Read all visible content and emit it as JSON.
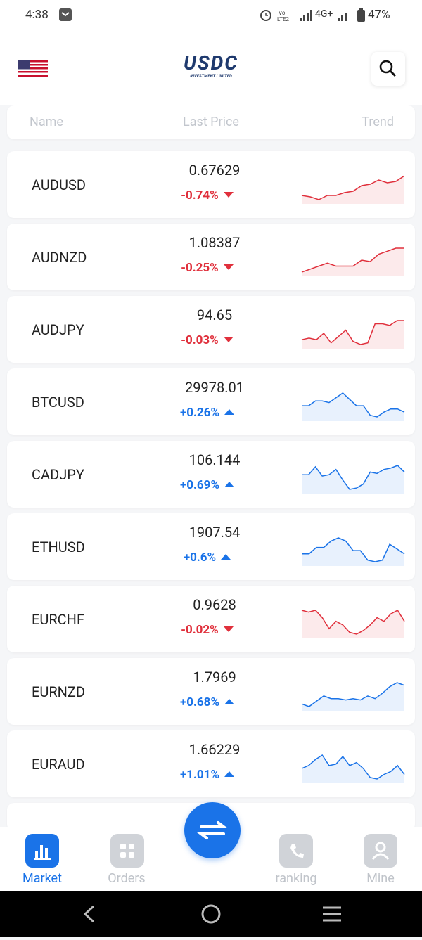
{
  "status_bar": {
    "time": "4:38",
    "network": "4G+",
    "battery": "47%"
  },
  "header": {
    "logo": "USDC",
    "logo_subtitle": "INVESTMENT LIMITED"
  },
  "table": {
    "columns": [
      "Name",
      "Last Price",
      "Trend"
    ],
    "rows": [
      {
        "symbol": "AUDUSD",
        "price": "0.67629",
        "change": "-0.74%",
        "color": "#e0303c",
        "trend": [
          4,
          3.5,
          2.5,
          4,
          4,
          5,
          5.5,
          7.5,
          8,
          9.5,
          8.5,
          9,
          11
        ]
      },
      {
        "symbol": "AUDNZD",
        "price": "1.08387",
        "change": "-0.25%",
        "color": "#e0303c",
        "trend": [
          2,
          3,
          4,
          5,
          4,
          4,
          4,
          6,
          5.5,
          8,
          9,
          10,
          10
        ]
      },
      {
        "symbol": "AUDJPY",
        "price": "94.65",
        "change": "-0.03%",
        "color": "#e0303c",
        "trend": [
          4,
          4.5,
          4,
          6,
          3,
          5,
          7,
          3.5,
          2.5,
          3,
          9,
          9,
          8.5,
          10,
          10
        ]
      },
      {
        "symbol": "BTCUSD",
        "price": "29978.01",
        "change": "+0.26%",
        "color": "#1a73e8",
        "trend": [
          5,
          5,
          6.5,
          6.5,
          6,
          7.5,
          9,
          7,
          5,
          5,
          2,
          1.5,
          3,
          4,
          4,
          3
        ]
      },
      {
        "symbol": "CADJPY",
        "price": "106.144",
        "change": "+0.69%",
        "color": "#1a73e8",
        "trend": [
          6,
          6,
          9,
          5.5,
          6,
          8,
          4,
          0.5,
          1,
          2.5,
          7,
          6.5,
          8,
          8.5,
          9.5,
          7
        ]
      },
      {
        "symbol": "ETHUSD",
        "price": "1907.54",
        "change": "+0.6%",
        "color": "#1a73e8",
        "trend": [
          3,
          3,
          5,
          5,
          7,
          8,
          7,
          4,
          4,
          1,
          0.5,
          1,
          6,
          4.5,
          3
        ]
      },
      {
        "symbol": "EURCHF",
        "price": "0.9628",
        "change": "-0.02%",
        "color": "#e0303c",
        "trend": [
          9,
          8.5,
          9,
          7,
          4,
          6,
          5,
          3,
          2.5,
          3.5,
          5,
          7,
          6,
          8,
          9,
          6
        ]
      },
      {
        "symbol": "EURNZD",
        "price": "1.7969",
        "change": "+0.68%",
        "color": "#1a73e8",
        "trend": [
          2,
          1,
          3,
          5,
          4,
          4,
          3.5,
          4,
          3.5,
          5,
          4,
          6,
          8.5,
          10,
          9
        ]
      },
      {
        "symbol": "EURAUD",
        "price": "1.66229",
        "change": "+1.01%",
        "color": "#1a73e8",
        "trend": [
          5,
          6,
          8,
          9.5,
          6,
          6.5,
          9,
          6,
          7,
          5,
          2,
          1.5,
          3,
          4,
          6,
          3
        ]
      }
    ]
  },
  "bottom_nav": [
    "Market",
    "Orders",
    "ranking",
    "Mine"
  ]
}
